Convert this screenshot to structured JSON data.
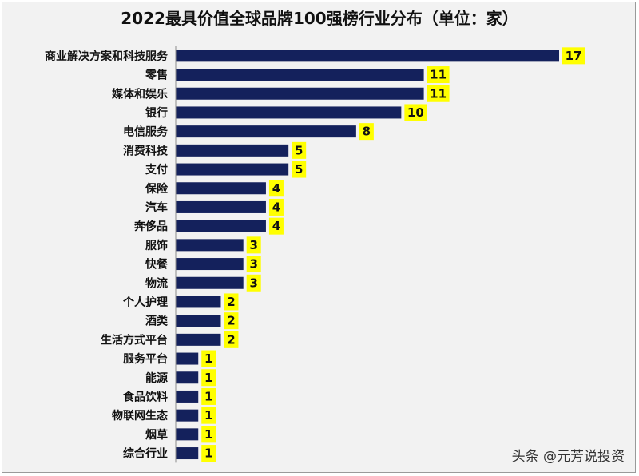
{
  "chart_data": {
    "type": "bar",
    "orientation": "horizontal",
    "title": "2022最具价值全球品牌100强榜行业分布（单位：家）",
    "categories": [
      "商业解决方案和科技服务",
      "零售",
      "媒体和娱乐",
      "银行",
      "电信服务",
      "消费科技",
      "支付",
      "保险",
      "汽车",
      "奔侈品",
      "服饰",
      "快餐",
      "物流",
      "个人护理",
      "酒类",
      "生活方式平台",
      "服务平台",
      "能源",
      "食品饮料",
      "物联网生态",
      "烟草",
      "综合行业"
    ],
    "values": [
      17,
      11,
      11,
      10,
      8,
      5,
      5,
      4,
      4,
      4,
      3,
      3,
      3,
      2,
      2,
      2,
      1,
      1,
      1,
      1,
      1,
      1
    ],
    "xlim": [
      0,
      17
    ],
    "grid": false,
    "legend": "none"
  },
  "colors": {
    "bar": "#14215c",
    "label_bg": "#ffff00",
    "text": "#111111",
    "axis": "#8c8c8c"
  },
  "watermark": "头条 @元芳说投资"
}
